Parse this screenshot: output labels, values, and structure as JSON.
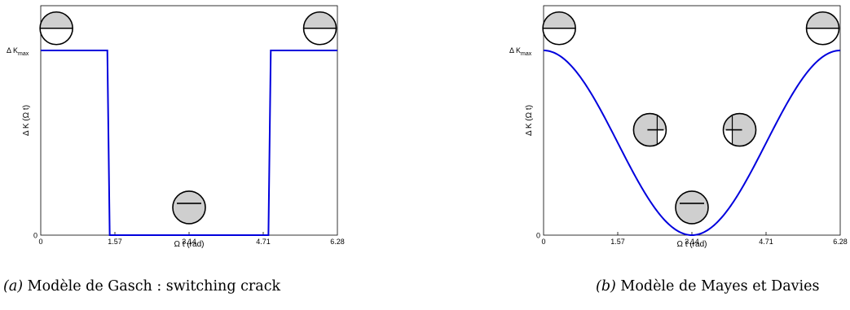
{
  "chart_data": [
    {
      "type": "line",
      "title": "",
      "xlabel": "Ω t  (rad)",
      "ylabel": "Δ K (Ω t)",
      "xlim": [
        0,
        6.28
      ],
      "ylim": [
        0,
        1
      ],
      "xticks": [
        "0",
        "1.57",
        "3.14",
        "4.71",
        "6.28"
      ],
      "ytick_labels": {
        "zero": "0",
        "max_prefix": "Δ K",
        "max_sub": "max"
      },
      "series": [
        {
          "color": "#0000dd",
          "x": [
            0,
            1.41,
            1.46,
            4.82,
            4.87,
            6.28
          ],
          "y": [
            1,
            1,
            0,
            0,
            1,
            1
          ]
        }
      ],
      "crack_icons": [
        {
          "x": 0.33,
          "y": 1.12,
          "state": "closed"
        },
        {
          "x": 3.14,
          "y": 0.15,
          "state": "open"
        },
        {
          "x": 5.91,
          "y": 1.12,
          "state": "closed"
        }
      ],
      "grid": false,
      "caption_tag": "(a)",
      "caption_text": " Modèle de Gasch : switching crack"
    },
    {
      "type": "line",
      "title": "",
      "xlabel": "Ω t  (rad)",
      "ylabel": "Δ K (Ω t)",
      "xlim": [
        0,
        6.28
      ],
      "ylim": [
        0,
        1
      ],
      "xticks": [
        "0",
        "1.57",
        "3.14",
        "4.71",
        "6.28"
      ],
      "ytick_labels": {
        "zero": "0",
        "max_prefix": "Δ K",
        "max_sub": "max"
      },
      "series": [
        {
          "color": "#0000dd",
          "function": "0.5*(1+cos(x))",
          "x_range": [
            0,
            6.28
          ]
        }
      ],
      "crack_icons": [
        {
          "x": 0.33,
          "y": 1.12,
          "state": "closed"
        },
        {
          "x": 2.25,
          "y": 0.57,
          "state": "partial-right"
        },
        {
          "x": 3.14,
          "y": 0.15,
          "state": "open"
        },
        {
          "x": 4.15,
          "y": 0.57,
          "state": "partial-left"
        },
        {
          "x": 5.91,
          "y": 1.12,
          "state": "closed"
        }
      ],
      "grid": false,
      "caption_tag": "(b)",
      "caption_text": " Modèle de Mayes et Davies"
    }
  ]
}
